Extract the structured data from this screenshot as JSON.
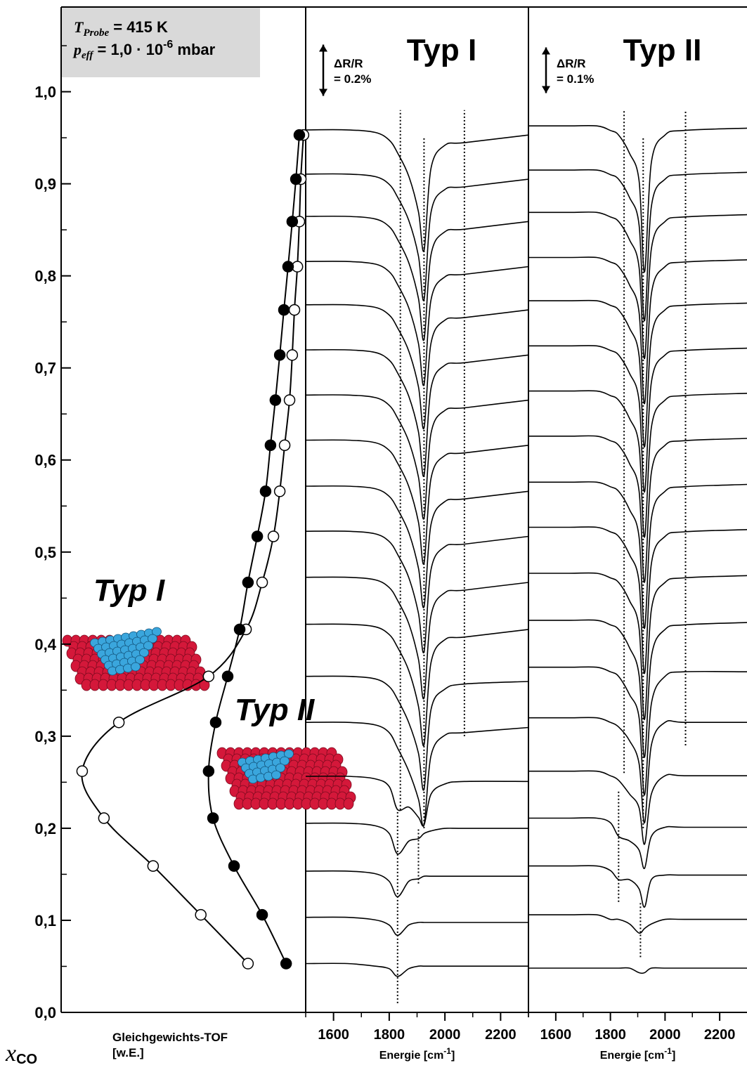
{
  "chart_data": [
    {
      "type": "scatter",
      "annotation": {
        "line1": [
          "T",
          "Probe",
          " = 415 K"
        ],
        "line2": [
          "p",
          "eff",
          " = 1,0 · 10",
          "-6",
          " mbar"
        ]
      },
      "ylabel": [
        "x",
        "CO"
      ],
      "xlabel": [
        "Gleichgewichts-TOF",
        "[w.E.]"
      ],
      "labels": [
        "Typ I",
        "Typ II"
      ],
      "xlim": [
        1,
        0
      ],
      "ylim": [
        0,
        1.092
      ],
      "yticks": [
        {
          "value": 0,
          "label": "0,0"
        },
        {
          "value": 0.1,
          "label": "0,1"
        },
        {
          "value": 0.2,
          "label": "0,2"
        },
        {
          "value": 0.3,
          "label": "0,3"
        },
        {
          "value": 0.4,
          "label": "0,4"
        },
        {
          "value": 0.5,
          "label": "0,5"
        },
        {
          "value": 0.6,
          "label": "0,6"
        },
        {
          "value": 0.7,
          "label": "0,7"
        },
        {
          "value": 0.8,
          "label": "0,8"
        },
        {
          "value": 0.9,
          "label": "0,9"
        },
        {
          "value": 1.0,
          "label": "1,0"
        }
      ],
      "yminorticks": [
        0.05,
        0.15,
        0.25,
        0.35,
        0.45,
        0.55,
        0.65,
        0.75,
        0.85,
        0.95,
        1.05
      ],
      "y": [
        0.953,
        0.905,
        0.859,
        0.81,
        0.763,
        0.714,
        0.665,
        0.616,
        0.566,
        0.517,
        0.467,
        0.416,
        0.365,
        0.315,
        0.262,
        0.211,
        0.159,
        0.106,
        0.053
      ],
      "series": [
        {
          "marker": "open",
          "color": "#000000",
          "values": [
            0.009,
            0.02,
            0.026,
            0.034,
            0.046,
            0.055,
            0.066,
            0.086,
            0.106,
            0.132,
            0.178,
            0.244,
            0.397,
            0.764,
            0.914,
            0.825,
            0.624,
            0.429,
            0.236
          ]
        },
        {
          "marker": "filled",
          "color": "#000000",
          "values": [
            0.026,
            0.04,
            0.055,
            0.072,
            0.089,
            0.106,
            0.124,
            0.144,
            0.164,
            0.198,
            0.236,
            0.27,
            0.319,
            0.368,
            0.397,
            0.379,
            0.293,
            0.178,
            0.08
          ]
        }
      ]
    },
    {
      "type": "spectra",
      "title": "Typ I",
      "xlabel": [
        "Energie [cm",
        "-1",
        "]"
      ],
      "xlim": [
        1500,
        2300
      ],
      "xticks": [
        1600,
        1800,
        2000,
        2200
      ],
      "xminorticks": [
        1500,
        1700,
        1900,
        2100,
        2300
      ],
      "scale_bar": {
        "value": 0.2,
        "label": [
          "ΔR/R",
          "= 0.2%"
        ]
      },
      "x": [
        1500,
        1650,
        1750,
        1800,
        1830,
        1870,
        1905,
        1925,
        1950,
        2000,
        2070,
        2300
      ],
      "series": [
        {
          "values": [
            0.02,
            0.02,
            0.01,
            -0.02,
            -0.07,
            -0.16,
            -0.3,
            -0.45,
            -0.13,
            -0.04,
            -0.03,
            0.0
          ]
        },
        {
          "values": [
            0.02,
            0.02,
            0.01,
            -0.02,
            -0.07,
            -0.16,
            -0.3,
            -0.47,
            -0.13,
            -0.04,
            -0.03,
            0.0
          ]
        },
        {
          "values": [
            0.02,
            0.02,
            0.01,
            -0.02,
            -0.07,
            -0.16,
            -0.3,
            -0.46,
            -0.13,
            -0.04,
            -0.03,
            0.0
          ]
        },
        {
          "values": [
            0.02,
            0.02,
            0.01,
            -0.02,
            -0.07,
            -0.16,
            -0.3,
            -0.46,
            -0.13,
            -0.04,
            -0.03,
            0.0
          ]
        },
        {
          "values": [
            0.02,
            0.02,
            0.01,
            -0.02,
            -0.07,
            -0.16,
            -0.3,
            -0.46,
            -0.13,
            -0.04,
            -0.03,
            0.0
          ]
        },
        {
          "values": [
            0.02,
            0.02,
            0.01,
            -0.02,
            -0.07,
            -0.16,
            -0.3,
            -0.47,
            -0.13,
            -0.04,
            -0.03,
            0.0
          ]
        },
        {
          "values": [
            0.02,
            0.02,
            0.01,
            -0.02,
            -0.07,
            -0.16,
            -0.3,
            -0.46,
            -0.13,
            -0.04,
            -0.03,
            0.0
          ]
        },
        {
          "values": [
            0.02,
            0.02,
            0.01,
            -0.02,
            -0.07,
            -0.16,
            -0.3,
            -0.46,
            -0.13,
            -0.04,
            -0.03,
            0.0
          ]
        },
        {
          "values": [
            0.02,
            0.02,
            0.01,
            -0.02,
            -0.07,
            -0.16,
            -0.3,
            -0.45,
            -0.13,
            -0.04,
            -0.03,
            0.0
          ]
        },
        {
          "values": [
            0.02,
            0.02,
            0.01,
            -0.02,
            -0.07,
            -0.16,
            -0.3,
            -0.45,
            -0.13,
            -0.04,
            -0.03,
            0.0
          ]
        },
        {
          "values": [
            0.02,
            0.02,
            0.01,
            -0.02,
            -0.07,
            -0.16,
            -0.3,
            -0.45,
            -0.13,
            -0.04,
            -0.03,
            0.0
          ]
        },
        {
          "values": [
            0.02,
            0.02,
            0.01,
            -0.02,
            -0.07,
            -0.16,
            -0.3,
            -0.45,
            -0.13,
            -0.04,
            -0.03,
            0.0
          ]
        },
        {
          "values": [
            0.0,
            0.0,
            -0.01,
            -0.04,
            -0.09,
            -0.18,
            -0.3,
            -0.44,
            -0.13,
            -0.05,
            -0.03,
            -0.02
          ]
        },
        {
          "values": [
            0.0,
            0.0,
            -0.01,
            -0.04,
            -0.1,
            -0.19,
            -0.3,
            -0.4,
            -0.13,
            -0.05,
            -0.04,
            -0.02
          ]
        },
        {
          "values": [
            -0.02,
            -0.02,
            -0.03,
            -0.06,
            -0.15,
            -0.14,
            -0.18,
            -0.21,
            -0.09,
            -0.05,
            -0.04,
            -0.04
          ]
        },
        {
          "values": [
            -0.02,
            -0.02,
            -0.03,
            -0.06,
            -0.14,
            -0.09,
            -0.08,
            -0.06,
            -0.05,
            -0.04,
            -0.04,
            -0.04
          ]
        },
        {
          "values": [
            -0.02,
            -0.02,
            -0.03,
            -0.06,
            -0.12,
            -0.06,
            -0.05,
            -0.04,
            -0.04,
            -0.04,
            -0.04,
            -0.04
          ]
        },
        {
          "values": [
            -0.01,
            -0.01,
            -0.02,
            -0.04,
            -0.08,
            -0.04,
            -0.03,
            -0.03,
            -0.03,
            -0.03,
            -0.03,
            -0.03
          ]
        },
        {
          "values": [
            0.0,
            0.0,
            -0.01,
            -0.02,
            -0.05,
            -0.02,
            -0.01,
            -0.01,
            -0.01,
            -0.01,
            -0.01,
            -0.01
          ]
        }
      ],
      "guides": [
        {
          "x": 1840,
          "y": [
            0.22,
            0.98
          ]
        },
        {
          "x": 1830,
          "y": [
            0.01,
            0.22
          ]
        },
        {
          "x": 1925,
          "y": [
            0.2,
            0.95
          ]
        },
        {
          "x": 1905,
          "y": [
            0.14,
            0.2
          ]
        },
        {
          "x": 2070,
          "y": [
            0.3,
            0.98
          ]
        }
      ]
    },
    {
      "type": "spectra",
      "title": "Typ II",
      "xlabel": [
        "Energie [cm",
        "-1",
        "]"
      ],
      "xlim": [
        1500,
        2300
      ],
      "xticks": [
        1600,
        1800,
        2000,
        2200
      ],
      "xminorticks": [
        1500,
        1700,
        1900,
        2100
      ],
      "scale_bar": {
        "value": 0.1,
        "label": [
          "ΔR/R",
          "= 0.1%"
        ]
      },
      "x": [
        1500,
        1650,
        1750,
        1800,
        1830,
        1870,
        1905,
        1925,
        1950,
        2000,
        2070,
        2300
      ],
      "series": [
        {
          "values": [
            0.02,
            0.02,
            0.02,
            0.01,
            0.0,
            -0.04,
            -0.1,
            -0.3,
            -0.06,
            0.0,
            0.01,
            0.015
          ]
        },
        {
          "values": [
            0.02,
            0.02,
            0.02,
            0.01,
            0.0,
            -0.04,
            -0.1,
            -0.31,
            -0.06,
            0.0,
            0.01,
            0.015
          ]
        },
        {
          "values": [
            0.02,
            0.02,
            0.02,
            0.01,
            0.0,
            -0.04,
            -0.1,
            -0.3,
            -0.06,
            0.0,
            0.01,
            0.015
          ]
        },
        {
          "values": [
            0.02,
            0.02,
            0.02,
            0.01,
            0.0,
            -0.04,
            -0.1,
            -0.3,
            -0.06,
            0.0,
            0.01,
            0.015
          ]
        },
        {
          "values": [
            0.02,
            0.02,
            0.02,
            0.01,
            0.0,
            -0.04,
            -0.1,
            -0.3,
            -0.06,
            0.0,
            0.01,
            0.015
          ]
        },
        {
          "values": [
            0.02,
            0.02,
            0.02,
            0.01,
            0.0,
            -0.04,
            -0.1,
            -0.3,
            -0.06,
            0.0,
            0.01,
            0.015
          ]
        },
        {
          "values": [
            0.02,
            0.02,
            0.02,
            0.01,
            0.0,
            -0.04,
            -0.1,
            -0.3,
            -0.06,
            0.0,
            0.01,
            0.015
          ]
        },
        {
          "values": [
            0.02,
            0.02,
            0.02,
            0.01,
            0.0,
            -0.04,
            -0.1,
            -0.3,
            -0.06,
            0.0,
            0.01,
            0.015
          ]
        },
        {
          "values": [
            0.02,
            0.02,
            0.02,
            0.01,
            0.0,
            -0.04,
            -0.1,
            -0.3,
            -0.06,
            0.0,
            0.01,
            0.015
          ]
        },
        {
          "values": [
            0.02,
            0.02,
            0.02,
            0.01,
            0.0,
            -0.04,
            -0.1,
            -0.3,
            -0.06,
            0.0,
            0.01,
            0.015
          ]
        },
        {
          "values": [
            0.02,
            0.02,
            0.02,
            0.01,
            0.0,
            -0.04,
            -0.1,
            -0.3,
            -0.06,
            0.0,
            0.01,
            0.015
          ]
        },
        {
          "values": [
            0.02,
            0.02,
            0.02,
            0.01,
            0.0,
            -0.04,
            -0.1,
            -0.28,
            -0.06,
            0.0,
            0.01,
            0.015
          ]
        },
        {
          "values": [
            0.02,
            0.02,
            0.02,
            0.01,
            0.0,
            -0.04,
            -0.09,
            -0.26,
            -0.06,
            0.0,
            0.01,
            0.01
          ]
        },
        {
          "values": [
            0.01,
            0.01,
            0.01,
            0.0,
            -0.01,
            -0.04,
            -0.09,
            -0.22,
            -0.05,
            0.0,
            0.0,
            0.0
          ]
        },
        {
          "values": [
            0.0,
            0.0,
            0.0,
            -0.01,
            -0.02,
            -0.05,
            -0.08,
            -0.16,
            -0.05,
            -0.01,
            -0.01,
            -0.01
          ]
        },
        {
          "values": [
            0.0,
            0.0,
            0.0,
            -0.01,
            -0.04,
            -0.05,
            -0.07,
            -0.11,
            -0.04,
            -0.02,
            -0.02,
            -0.02
          ]
        },
        {
          "values": [
            0.0,
            0.0,
            0.0,
            -0.01,
            -0.03,
            -0.03,
            -0.05,
            -0.09,
            -0.03,
            -0.02,
            -0.02,
            -0.02
          ]
        },
        {
          "values": [
            0.0,
            0.0,
            0.0,
            -0.01,
            -0.01,
            -0.02,
            -0.04,
            -0.03,
            -0.02,
            -0.01,
            -0.01,
            -0.01
          ]
        },
        {
          "values": [
            -0.01,
            -0.01,
            -0.01,
            -0.01,
            -0.01,
            -0.01,
            -0.02,
            -0.02,
            -0.01,
            -0.01,
            -0.01,
            -0.01
          ]
        }
      ],
      "guides": [
        {
          "x": 1850,
          "y": [
            0.26,
            0.98
          ]
        },
        {
          "x": 1830,
          "y": [
            0.12,
            0.24
          ]
        },
        {
          "x": 1920,
          "y": [
            0.2,
            0.95
          ]
        },
        {
          "x": 1910,
          "y": [
            0.06,
            0.12
          ]
        },
        {
          "x": 2075,
          "y": [
            0.29,
            0.98
          ]
        }
      ]
    }
  ]
}
